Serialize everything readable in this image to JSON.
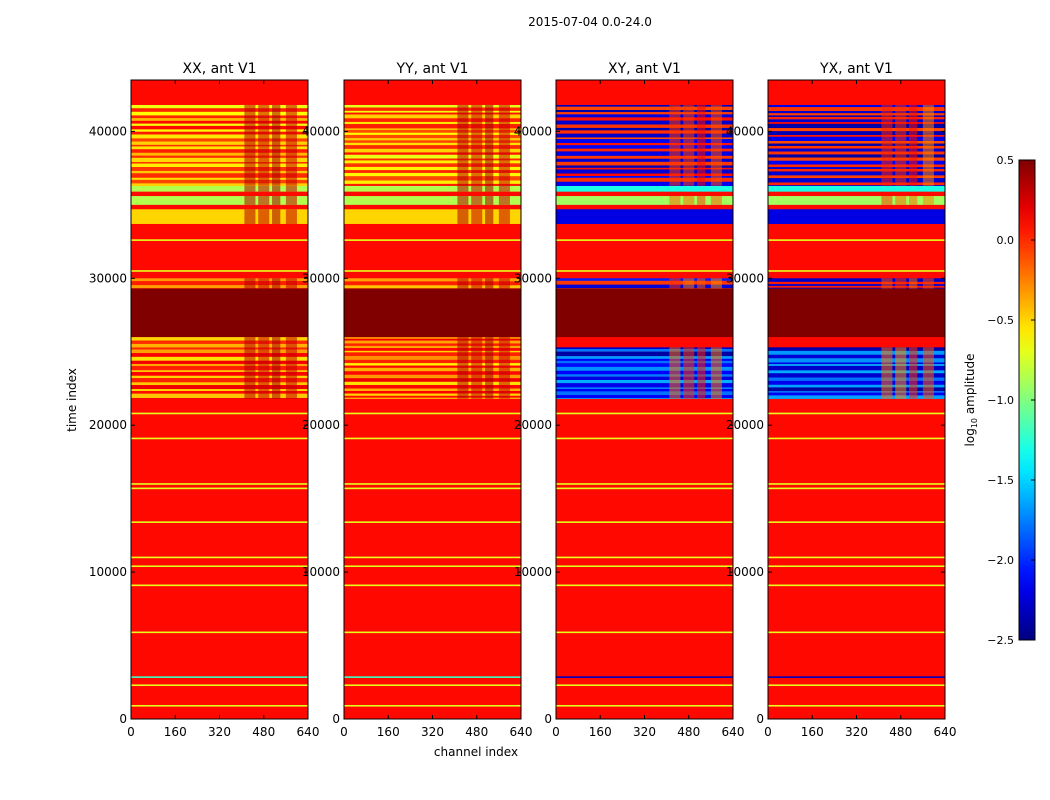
{
  "figure": {
    "suptitle": "2015-07-04 0.0-24.0",
    "xlabel": "channel index",
    "ylabel": "time index",
    "colorbar_label_base": "log",
    "colorbar_label_sub": "10",
    "colorbar_label_rest": " amplitude"
  },
  "chart_data": {
    "type": "heatmap",
    "colormap": "jet",
    "xlim": [
      0,
      640
    ],
    "ylim": [
      0,
      43500
    ],
    "xticks": [
      0,
      160,
      320,
      480,
      640
    ],
    "xtick_labels": [
      "0",
      "160",
      "320",
      "480",
      "640"
    ],
    "yticks": [
      0,
      10000,
      20000,
      30000,
      40000
    ],
    "ytick_labels": [
      "0",
      "10000",
      "20000",
      "30000",
      "40000"
    ],
    "colorbar": {
      "range": [
        -2.5,
        0.5
      ],
      "ticks": [
        0.5,
        0.0,
        -0.5,
        -1.0,
        -1.5,
        -2.0,
        -2.5
      ],
      "tick_labels": [
        "0.5",
        "0.0",
        "−0.5",
        "−1.0",
        "−1.5",
        "−2.0",
        "−2.5"
      ]
    },
    "panels": [
      {
        "title": "XX, ant V1",
        "kind": "parallel"
      },
      {
        "title": "YY, ant V1",
        "kind": "parallel"
      },
      {
        "title": "XY, ant V1",
        "kind": "cross"
      },
      {
        "title": "YX, ant V1",
        "kind": "cross"
      }
    ],
    "base_level": 0.1,
    "saturated_level": 0.5,
    "saturated_time_range": [
      26000,
      29300
    ],
    "thin_lines": [
      {
        "t": 900,
        "level": -0.7
      },
      {
        "t": 2300,
        "level": -0.7
      },
      {
        "t": 2850,
        "level": -1.2
      },
      {
        "t": 5900,
        "level": -0.7
      },
      {
        "t": 9100,
        "level": -0.7
      },
      {
        "t": 10400,
        "level": -0.7
      },
      {
        "t": 11000,
        "level": -0.7
      },
      {
        "t": 13400,
        "level": -0.7
      },
      {
        "t": 15700,
        "level": -0.7
      },
      {
        "t": 16000,
        "level": -0.7
      },
      {
        "t": 19100,
        "level": -0.7
      },
      {
        "t": 20800,
        "level": -0.7
      },
      {
        "t": 30500,
        "level": -0.7
      },
      {
        "t": 32600,
        "level": -0.7
      }
    ],
    "active_ranges_parallel": [
      {
        "from": 21800,
        "to": 26000,
        "mode": "bands",
        "low": -0.6,
        "high": 0.2
      },
      {
        "from": 29300,
        "to": 30000,
        "mode": "bands",
        "low": -0.6,
        "high": 0.1
      },
      {
        "from": 33700,
        "to": 34700,
        "mode": "solid",
        "level": -0.5
      },
      {
        "from": 35000,
        "to": 35600,
        "mode": "solid",
        "level": -0.85
      },
      {
        "from": 35900,
        "to": 36300,
        "mode": "solid",
        "level": -0.85
      },
      {
        "from": 36300,
        "to": 41800,
        "mode": "bands",
        "low": -0.7,
        "high": 0.1
      }
    ],
    "active_ranges_cross": [
      {
        "from": 21800,
        "to": 25300,
        "mode": "bands",
        "low": -2.4,
        "high": -1.6
      },
      {
        "from": 29300,
        "to": 30000,
        "mode": "bands",
        "low": -2.3,
        "high": 0.1
      },
      {
        "from": 33700,
        "to": 34700,
        "mode": "solid",
        "level": -2.2
      },
      {
        "from": 35000,
        "to": 35600,
        "mode": "solid",
        "level": -0.9
      },
      {
        "from": 35900,
        "to": 36300,
        "mode": "solid",
        "level": -1.3
      },
      {
        "from": 36300,
        "to": 41800,
        "mode": "bands",
        "low": -2.4,
        "high": 0.1
      }
    ],
    "channel_clusters": [
      {
        "from": 410,
        "to": 450,
        "level": 0.35
      },
      {
        "from": 460,
        "to": 500,
        "level": 0.3
      },
      {
        "from": 510,
        "to": 540,
        "level": 0.4
      },
      {
        "from": 560,
        "to": 600,
        "level": 0.3
      }
    ]
  }
}
